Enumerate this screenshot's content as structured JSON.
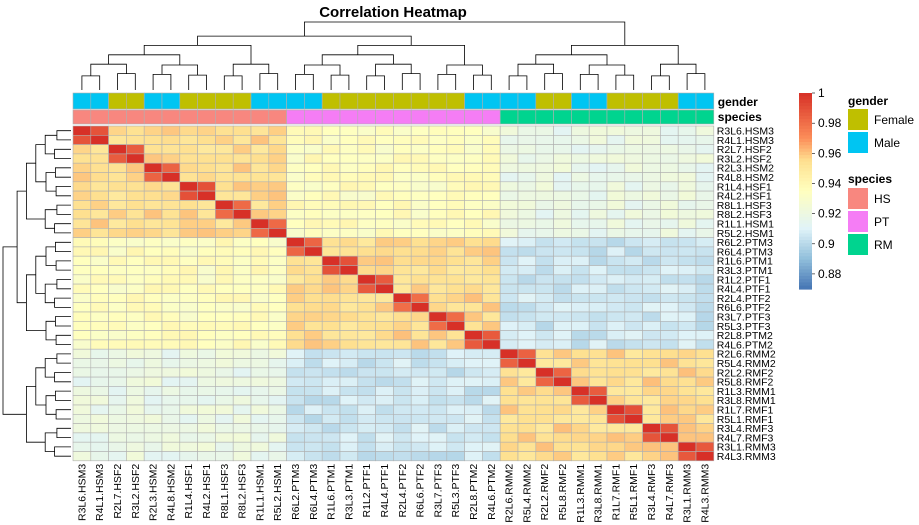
{
  "chart_data": {
    "type": "heatmap",
    "title": "Correlation Heatmap",
    "samples": [
      "R3L6.HSM3",
      "R4L1.HSM3",
      "R2L7.HSF2",
      "R3L2.HSF2",
      "R2L3.HSM2",
      "R4L8.HSM2",
      "R1L4.HSF1",
      "R4L2.HSF1",
      "R8L1.HSF3",
      "R8L2.HSF3",
      "R1L1.HSM1",
      "R5L2.HSM1",
      "R6L2.PTM3",
      "R6L4.PTM3",
      "R1L6.PTM1",
      "R3L3.PTM1",
      "R1L2.PTF1",
      "R4L4.PTF1",
      "R2L4.PTF2",
      "R6L6.PTF2",
      "R3L7.PTF3",
      "R5L3.PTF3",
      "R2L8.PTM2",
      "R4L6.PTM2",
      "R2L6.RMM2",
      "R5L4.RMM2",
      "R2L2.RMF2",
      "R5L8.RMF2",
      "R1L3.RMM1",
      "R3L8.RMM1",
      "R1L7.RMF1",
      "R5L1.RMF1",
      "R3L4.RMF3",
      "R4L7.RMF3",
      "R3L1.RMM3",
      "R4L3.RMM3"
    ],
    "species": [
      "HS",
      "HS",
      "HS",
      "HS",
      "HS",
      "HS",
      "HS",
      "HS",
      "HS",
      "HS",
      "HS",
      "HS",
      "PT",
      "PT",
      "PT",
      "PT",
      "PT",
      "PT",
      "PT",
      "PT",
      "PT",
      "PT",
      "PT",
      "PT",
      "RM",
      "RM",
      "RM",
      "RM",
      "RM",
      "RM",
      "RM",
      "RM",
      "RM",
      "RM",
      "RM",
      "RM"
    ],
    "gender": [
      "Male",
      "Male",
      "Female",
      "Female",
      "Male",
      "Male",
      "Female",
      "Female",
      "Female",
      "Female",
      "Male",
      "Male",
      "Male",
      "Male",
      "Female",
      "Female",
      "Female",
      "Female",
      "Female",
      "Female",
      "Female",
      "Female",
      "Male",
      "Male",
      "Male",
      "Male",
      "Female",
      "Female",
      "Male",
      "Male",
      "Female",
      "Female",
      "Female",
      "Female",
      "Male",
      "Male"
    ],
    "pairs": [
      2,
      2,
      2,
      2,
      2,
      2,
      2,
      2,
      2,
      2,
      2,
      2,
      2,
      2,
      2,
      2,
      2,
      2
    ],
    "corr": {
      "self": 1.0,
      "pair": 0.985,
      "within_species": 0.955,
      "hs_pt": 0.935,
      "hs_rm": 0.918,
      "pt_rm": 0.905
    },
    "color_scale": {
      "min": 0.87,
      "max": 1.0,
      "stops": [
        [
          0.87,
          "#4575b4"
        ],
        [
          0.89,
          "#91bfdb"
        ],
        [
          0.91,
          "#e0f3f8"
        ],
        [
          0.935,
          "#ffffbf"
        ],
        [
          0.955,
          "#fee090"
        ],
        [
          0.97,
          "#fc8d59"
        ],
        [
          1.0,
          "#d73027"
        ]
      ],
      "ticks": [
        "1",
        "0.98",
        "0.96",
        "0.94",
        "0.92",
        "0.9",
        "0.88"
      ],
      "tick_values": [
        1.0,
        0.98,
        0.96,
        0.94,
        0.92,
        0.9,
        0.88
      ]
    },
    "annotations": {
      "row_labels": [
        "gender",
        "species"
      ],
      "gender": {
        "title": "gender",
        "items": [
          {
            "label": "Female",
            "color": "#bfbf00"
          },
          {
            "label": "Male",
            "color": "#00c5f2"
          }
        ]
      },
      "species": {
        "title": "species",
        "items": [
          {
            "label": "HS",
            "color": "#f8877f"
          },
          {
            "label": "PT",
            "color": "#f57df5"
          },
          {
            "label": "RM",
            "color": "#00d48f"
          }
        ]
      }
    },
    "legend_placement": "right",
    "cell_border": "#b0b0b0",
    "dendrogram_color": "#000000"
  }
}
